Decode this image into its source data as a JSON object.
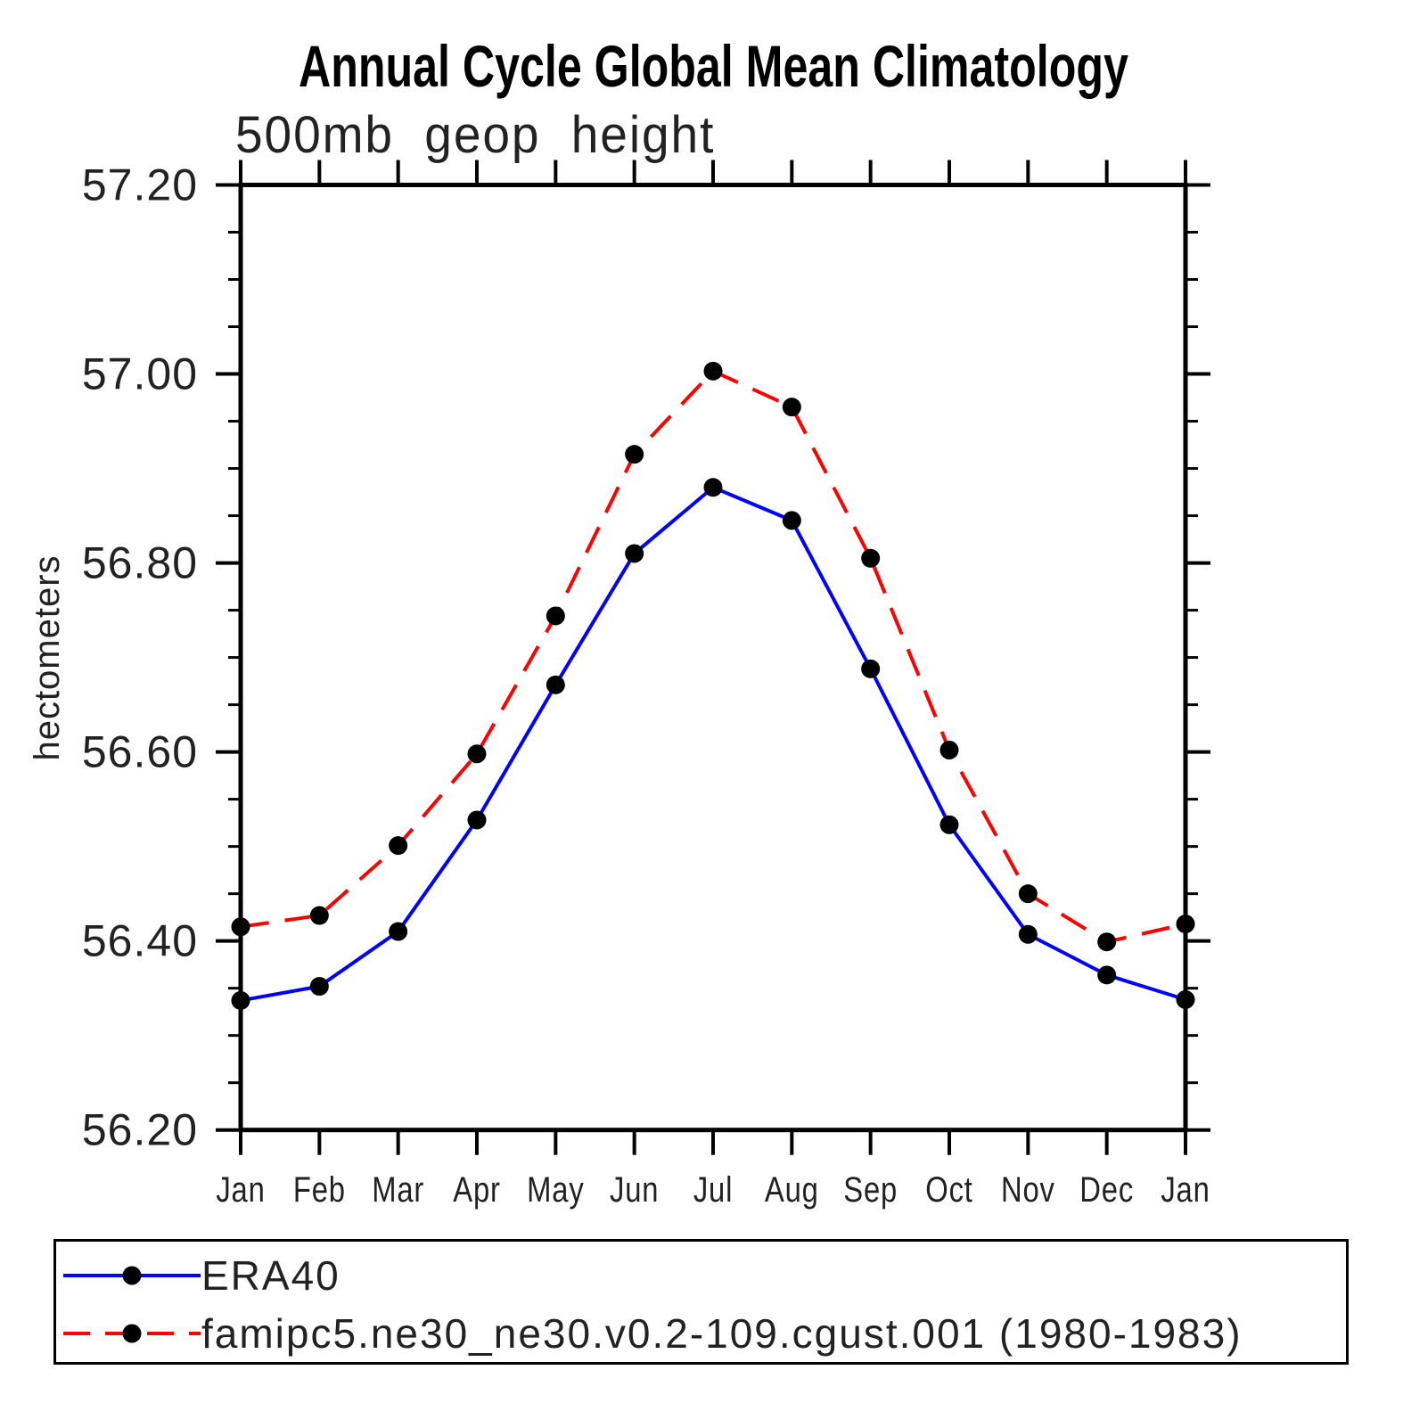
{
  "title": "Annual Cycle Global Mean Climatology",
  "subtitle": "500mb geop height",
  "y_axis": {
    "label": "hectometers",
    "min": 56.2,
    "max": 57.2,
    "minor_step": 0.05,
    "ticks": [
      {
        "label": "57.20",
        "value": 57.2
      },
      {
        "label": "57.00",
        "value": 57.0
      },
      {
        "label": "56.80",
        "value": 56.8
      },
      {
        "label": "56.60",
        "value": 56.6
      },
      {
        "label": "56.40",
        "value": 56.4
      },
      {
        "label": "56.20",
        "value": 56.2
      }
    ]
  },
  "x_axis": {
    "tick_labels": [
      "Jan",
      "Feb",
      "Mar",
      "Apr",
      "May",
      "Jun",
      "Jul",
      "Aug",
      "Sep",
      "Oct",
      "Nov",
      "Dec",
      "Jan"
    ]
  },
  "legend": {
    "position": "bottom-left-box",
    "entries": [
      {
        "label": "ERA40",
        "color": "#0000ff",
        "line_style": "solid",
        "marker": "filled-circle"
      },
      {
        "label": "famipc5.ne30_ne30.v0.2-109.cgust.001 (1980-1983)",
        "color": "#ff0000",
        "line_style": "dashed",
        "marker": "filled-circle"
      }
    ]
  },
  "chart_data": {
    "type": "line",
    "title": "Annual Cycle Global Mean Climatology",
    "subtitle": "500mb geop height",
    "xlabel": "",
    "ylabel": "hectometers",
    "ylim": [
      56.2,
      57.2
    ],
    "grid": false,
    "categories": [
      "Jan",
      "Feb",
      "Mar",
      "Apr",
      "May",
      "Jun",
      "Jul",
      "Aug",
      "Sep",
      "Oct",
      "Nov",
      "Dec",
      "Jan"
    ],
    "series": [
      {
        "name": "ERA40",
        "color": "#0000ff",
        "line_style": "solid",
        "marker": "filled-circle",
        "marker_color": "#000000",
        "values": [
          56.337,
          56.352,
          56.41,
          56.528,
          56.671,
          56.81,
          56.88,
          56.845,
          56.688,
          56.523,
          56.407,
          56.364,
          56.338
        ]
      },
      {
        "name": "famipc5.ne30_ne30.v0.2-109.cgust.001 (1980-1983)",
        "color": "#ff0000",
        "line_style": "dashed",
        "marker": "filled-circle",
        "marker_color": "#000000",
        "values": [
          56.415,
          56.427,
          56.501,
          56.598,
          56.744,
          56.915,
          57.003,
          56.965,
          56.805,
          56.602,
          56.45,
          56.399,
          56.418
        ]
      }
    ]
  }
}
